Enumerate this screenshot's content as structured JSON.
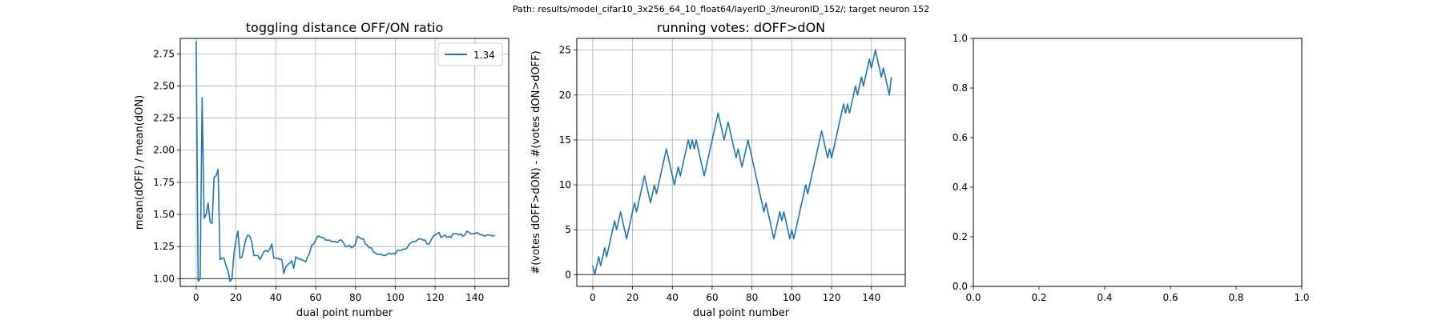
{
  "suptitle": "Path: results/model_cifar10_3x256_64_10_float64/layerID_3/neuronID_152/; target neuron 152",
  "colors": {
    "series": "#1f77b4",
    "grid": "#b0b0b0",
    "reference": "#555555"
  },
  "chart_data": [
    {
      "type": "line",
      "title": "toggling distance OFF/ON ratio",
      "xlabel": "dual point number",
      "ylabel": "mean(dOFF) / mean(dON)",
      "xlim": [
        -8,
        157
      ],
      "ylim": [
        0.94,
        2.87
      ],
      "xticks": [
        0,
        20,
        40,
        60,
        80,
        100,
        120,
        140
      ],
      "yticks": [
        1.0,
        1.25,
        1.5,
        1.75,
        2.0,
        2.25,
        2.5,
        2.75
      ],
      "ytick_labels": [
        "1.00",
        "1.25",
        "1.50",
        "1.75",
        "2.00",
        "2.25",
        "2.50",
        "2.75"
      ],
      "grid": true,
      "reference_line_y": 1.0,
      "legend": {
        "position": "top-right",
        "entries": [
          "1.34"
        ]
      },
      "series": [
        {
          "name": "1.34",
          "x": [
            0,
            1,
            2,
            3,
            4,
            5,
            6,
            7,
            8,
            9,
            10,
            11,
            12,
            13,
            14,
            15,
            16,
            17,
            18,
            19,
            20,
            21,
            22,
            23,
            24,
            25,
            26,
            27,
            28,
            29,
            30,
            31,
            32,
            33,
            34,
            35,
            36,
            37,
            38,
            39,
            40,
            41,
            42,
            43,
            44,
            45,
            46,
            47,
            48,
            49,
            50,
            51,
            52,
            53,
            54,
            55,
            56,
            57,
            58,
            59,
            60,
            61,
            62,
            63,
            64,
            65,
            66,
            67,
            68,
            69,
            70,
            71,
            72,
            73,
            74,
            75,
            76,
            77,
            78,
            79,
            80,
            81,
            82,
            83,
            84,
            85,
            86,
            87,
            88,
            89,
            90,
            91,
            92,
            93,
            94,
            95,
            96,
            97,
            98,
            99,
            100,
            101,
            102,
            103,
            104,
            105,
            106,
            107,
            108,
            109,
            110,
            111,
            112,
            113,
            114,
            115,
            116,
            117,
            118,
            119,
            120,
            121,
            122,
            123,
            124,
            125,
            126,
            127,
            128,
            129,
            130,
            131,
            132,
            133,
            134,
            135,
            136,
            137,
            138,
            139,
            140,
            141,
            142,
            143,
            144,
            145,
            146,
            147,
            148,
            149,
            150
          ],
          "values": [
            2.85,
            0.98,
            1.0,
            2.41,
            1.47,
            1.5,
            1.59,
            1.44,
            1.43,
            1.79,
            1.8,
            1.85,
            1.15,
            1.16,
            1.16,
            1.1,
            1.06,
            0.98,
            1.0,
            1.2,
            1.3,
            1.37,
            1.16,
            1.17,
            1.24,
            1.31,
            1.34,
            1.33,
            1.28,
            1.18,
            1.18,
            1.18,
            1.15,
            1.18,
            1.21,
            1.22,
            1.21,
            1.23,
            1.27,
            1.16,
            1.16,
            1.16,
            1.15,
            1.15,
            1.04,
            1.09,
            1.11,
            1.12,
            1.14,
            1.08,
            1.17,
            1.16,
            1.15,
            1.15,
            1.14,
            1.13,
            1.17,
            1.2,
            1.26,
            1.27,
            1.3,
            1.33,
            1.33,
            1.32,
            1.32,
            1.3,
            1.3,
            1.3,
            1.29,
            1.29,
            1.29,
            1.28,
            1.3,
            1.3,
            1.28,
            1.25,
            1.25,
            1.26,
            1.24,
            1.25,
            1.27,
            1.33,
            1.32,
            1.31,
            1.31,
            1.27,
            1.26,
            1.24,
            1.24,
            1.21,
            1.2,
            1.19,
            1.19,
            1.19,
            1.18,
            1.18,
            1.19,
            1.2,
            1.19,
            1.2,
            1.19,
            1.22,
            1.22,
            1.22,
            1.23,
            1.23,
            1.24,
            1.27,
            1.28,
            1.29,
            1.29,
            1.3,
            1.31,
            1.31,
            1.3,
            1.3,
            1.27,
            1.27,
            1.3,
            1.33,
            1.34,
            1.35,
            1.36,
            1.32,
            1.33,
            1.34,
            1.32,
            1.33,
            1.32,
            1.35,
            1.35,
            1.35,
            1.34,
            1.35,
            1.33,
            1.34,
            1.37,
            1.36,
            1.35,
            1.35,
            1.35,
            1.36,
            1.35,
            1.34,
            1.34,
            1.33,
            1.34,
            1.34,
            1.34,
            1.33,
            1.34
          ]
        }
      ]
    },
    {
      "type": "line",
      "title": "running votes: dOFF>dON",
      "xlabel": "dual point number",
      "ylabel": "#(votes dOFF>dON) - #(votes dON>dOFF)",
      "xlim": [
        -8,
        157
      ],
      "ylim": [
        -1.3,
        26.3
      ],
      "xticks": [
        0,
        20,
        40,
        60,
        80,
        100,
        120,
        140
      ],
      "yticks": [
        0,
        5,
        10,
        15,
        20,
        25
      ],
      "ytick_labels": [
        "0",
        "5",
        "10",
        "15",
        "20",
        "25"
      ],
      "grid": true,
      "reference_line_y": 0,
      "series": [
        {
          "x": [
            0,
            1,
            2,
            3,
            4,
            5,
            6,
            7,
            8,
            9,
            10,
            11,
            12,
            13,
            14,
            15,
            16,
            17,
            18,
            19,
            20,
            21,
            22,
            23,
            24,
            25,
            26,
            27,
            28,
            29,
            30,
            31,
            32,
            33,
            34,
            35,
            36,
            37,
            38,
            39,
            40,
            41,
            42,
            43,
            44,
            45,
            46,
            47,
            48,
            49,
            50,
            51,
            52,
            53,
            54,
            55,
            56,
            57,
            58,
            59,
            60,
            61,
            62,
            63,
            64,
            65,
            66,
            67,
            68,
            69,
            70,
            71,
            72,
            73,
            74,
            75,
            76,
            77,
            78,
            79,
            80,
            81,
            82,
            83,
            84,
            85,
            86,
            87,
            88,
            89,
            90,
            91,
            92,
            93,
            94,
            95,
            96,
            97,
            98,
            99,
            100,
            101,
            102,
            103,
            104,
            105,
            106,
            107,
            108,
            109,
            110,
            111,
            112,
            113,
            114,
            115,
            116,
            117,
            118,
            119,
            120,
            121,
            122,
            123,
            124,
            125,
            126,
            127,
            128,
            129,
            130,
            131,
            132,
            133,
            134,
            135,
            136,
            137,
            138,
            139,
            140,
            141,
            142,
            143,
            144,
            145,
            146,
            147,
            148,
            149,
            150
          ],
          "values": [
            1,
            0,
            1,
            2,
            1,
            2,
            3,
            2,
            3,
            4,
            5,
            6,
            5,
            6,
            7,
            6,
            5,
            4,
            5,
            6,
            7,
            8,
            7,
            8,
            9,
            10,
            11,
            10,
            9,
            8,
            9,
            10,
            9,
            10,
            11,
            12,
            13,
            14,
            13,
            12,
            11,
            10,
            11,
            12,
            11,
            12,
            13,
            14,
            15,
            14,
            15,
            14,
            15,
            14,
            13,
            12,
            11,
            12,
            13,
            14,
            15,
            16,
            17,
            18,
            17,
            16,
            15,
            16,
            17,
            16,
            15,
            14,
            13,
            14,
            13,
            12,
            13,
            14,
            15,
            14,
            13,
            12,
            11,
            10,
            9,
            8,
            7,
            8,
            7,
            6,
            5,
            4,
            5,
            6,
            7,
            6,
            7,
            6,
            5,
            4,
            5,
            4,
            5,
            6,
            7,
            8,
            9,
            10,
            9,
            10,
            11,
            12,
            13,
            14,
            15,
            16,
            15,
            14,
            13,
            14,
            13,
            14,
            15,
            16,
            17,
            18,
            19,
            18,
            19,
            18,
            19,
            20,
            21,
            20,
            21,
            22,
            21,
            22,
            23,
            24,
            23,
            24,
            25,
            24,
            23,
            22,
            23,
            22,
            21,
            20,
            22
          ]
        }
      ]
    },
    {
      "type": "line",
      "title": "",
      "xlabel": "",
      "ylabel": "",
      "xlim": [
        0.0,
        1.0
      ],
      "ylim": [
        0.0,
        1.0
      ],
      "xticks": [
        0.0,
        0.2,
        0.4,
        0.6,
        0.8,
        1.0
      ],
      "xtick_labels": [
        "0.0",
        "0.2",
        "0.4",
        "0.6",
        "0.8",
        "1.0"
      ],
      "yticks": [
        0.0,
        0.2,
        0.4,
        0.6,
        0.8,
        1.0
      ],
      "ytick_labels": [
        "0.0",
        "0.2",
        "0.4",
        "0.6",
        "0.8",
        "1.0"
      ],
      "grid": false,
      "series": []
    }
  ]
}
